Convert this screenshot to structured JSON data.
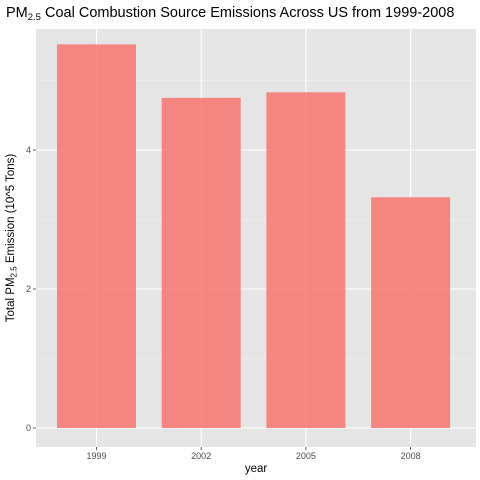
{
  "chart_data": {
    "type": "bar",
    "title": "PM2.5 Coal Combustion Source Emissions Across US from 1999-2008",
    "title_parts": {
      "before": "PM",
      "subscript": "2.5",
      "after": " Coal Combustion Source Emissions Across US from 1999-2008"
    },
    "xlabel": "year",
    "ylabel": "Total PM2.5 Emission (10^5 Tons)",
    "ylabel_parts": {
      "before": "Total PM",
      "subscript": "2.5",
      "after": " Emission (10^5 Tons)"
    },
    "categories": [
      "1999",
      "2002",
      "2005",
      "2008"
    ],
    "values": [
      5.52,
      4.75,
      4.83,
      3.32
    ],
    "ylim": [
      -0.0,
      5.8
    ],
    "yticks": [
      0,
      2,
      4
    ],
    "ytick_labels": [
      "0",
      "2",
      "4"
    ],
    "grid": true,
    "legend": "none",
    "colors": {
      "bar": "#F8766D",
      "bar_fill_opacity": 0.85,
      "panel_background": "#E5E5E5",
      "grid_major": "#FFFFFF",
      "grid_minor": "#F2F2F2",
      "tick": "#333333",
      "tick_label": "#4D4D4D"
    }
  }
}
